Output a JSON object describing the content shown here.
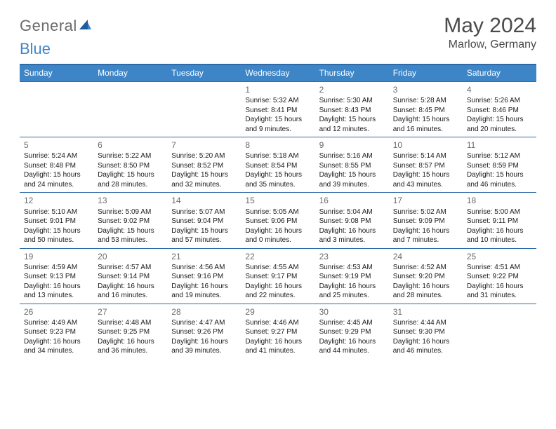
{
  "logo": {
    "word1": "General",
    "word2": "Blue"
  },
  "title": {
    "month": "May 2024",
    "location": "Marlow, Germany"
  },
  "dayHeaders": [
    "Sunday",
    "Monday",
    "Tuesday",
    "Wednesday",
    "Thursday",
    "Friday",
    "Saturday"
  ],
  "colors": {
    "headerBg": "#3d85c6",
    "ruleLine": "#2f6aa8",
    "textGray": "#6a6a6a",
    "logoGray": "#6b6b6b",
    "logoBlue": "#3d85c6"
  },
  "weeks": [
    [
      null,
      null,
      null,
      {
        "d": "1",
        "sr": "5:32 AM",
        "ss": "8:41 PM",
        "dl": "15 hours and 9 minutes."
      },
      {
        "d": "2",
        "sr": "5:30 AM",
        "ss": "8:43 PM",
        "dl": "15 hours and 12 minutes."
      },
      {
        "d": "3",
        "sr": "5:28 AM",
        "ss": "8:45 PM",
        "dl": "15 hours and 16 minutes."
      },
      {
        "d": "4",
        "sr": "5:26 AM",
        "ss": "8:46 PM",
        "dl": "15 hours and 20 minutes."
      }
    ],
    [
      {
        "d": "5",
        "sr": "5:24 AM",
        "ss": "8:48 PM",
        "dl": "15 hours and 24 minutes."
      },
      {
        "d": "6",
        "sr": "5:22 AM",
        "ss": "8:50 PM",
        "dl": "15 hours and 28 minutes."
      },
      {
        "d": "7",
        "sr": "5:20 AM",
        "ss": "8:52 PM",
        "dl": "15 hours and 32 minutes."
      },
      {
        "d": "8",
        "sr": "5:18 AM",
        "ss": "8:54 PM",
        "dl": "15 hours and 35 minutes."
      },
      {
        "d": "9",
        "sr": "5:16 AM",
        "ss": "8:55 PM",
        "dl": "15 hours and 39 minutes."
      },
      {
        "d": "10",
        "sr": "5:14 AM",
        "ss": "8:57 PM",
        "dl": "15 hours and 43 minutes."
      },
      {
        "d": "11",
        "sr": "5:12 AM",
        "ss": "8:59 PM",
        "dl": "15 hours and 46 minutes."
      }
    ],
    [
      {
        "d": "12",
        "sr": "5:10 AM",
        "ss": "9:01 PM",
        "dl": "15 hours and 50 minutes."
      },
      {
        "d": "13",
        "sr": "5:09 AM",
        "ss": "9:02 PM",
        "dl": "15 hours and 53 minutes."
      },
      {
        "d": "14",
        "sr": "5:07 AM",
        "ss": "9:04 PM",
        "dl": "15 hours and 57 minutes."
      },
      {
        "d": "15",
        "sr": "5:05 AM",
        "ss": "9:06 PM",
        "dl": "16 hours and 0 minutes."
      },
      {
        "d": "16",
        "sr": "5:04 AM",
        "ss": "9:08 PM",
        "dl": "16 hours and 3 minutes."
      },
      {
        "d": "17",
        "sr": "5:02 AM",
        "ss": "9:09 PM",
        "dl": "16 hours and 7 minutes."
      },
      {
        "d": "18",
        "sr": "5:00 AM",
        "ss": "9:11 PM",
        "dl": "16 hours and 10 minutes."
      }
    ],
    [
      {
        "d": "19",
        "sr": "4:59 AM",
        "ss": "9:13 PM",
        "dl": "16 hours and 13 minutes."
      },
      {
        "d": "20",
        "sr": "4:57 AM",
        "ss": "9:14 PM",
        "dl": "16 hours and 16 minutes."
      },
      {
        "d": "21",
        "sr": "4:56 AM",
        "ss": "9:16 PM",
        "dl": "16 hours and 19 minutes."
      },
      {
        "d": "22",
        "sr": "4:55 AM",
        "ss": "9:17 PM",
        "dl": "16 hours and 22 minutes."
      },
      {
        "d": "23",
        "sr": "4:53 AM",
        "ss": "9:19 PM",
        "dl": "16 hours and 25 minutes."
      },
      {
        "d": "24",
        "sr": "4:52 AM",
        "ss": "9:20 PM",
        "dl": "16 hours and 28 minutes."
      },
      {
        "d": "25",
        "sr": "4:51 AM",
        "ss": "9:22 PM",
        "dl": "16 hours and 31 minutes."
      }
    ],
    [
      {
        "d": "26",
        "sr": "4:49 AM",
        "ss": "9:23 PM",
        "dl": "16 hours and 34 minutes."
      },
      {
        "d": "27",
        "sr": "4:48 AM",
        "ss": "9:25 PM",
        "dl": "16 hours and 36 minutes."
      },
      {
        "d": "28",
        "sr": "4:47 AM",
        "ss": "9:26 PM",
        "dl": "16 hours and 39 minutes."
      },
      {
        "d": "29",
        "sr": "4:46 AM",
        "ss": "9:27 PM",
        "dl": "16 hours and 41 minutes."
      },
      {
        "d": "30",
        "sr": "4:45 AM",
        "ss": "9:29 PM",
        "dl": "16 hours and 44 minutes."
      },
      {
        "d": "31",
        "sr": "4:44 AM",
        "ss": "9:30 PM",
        "dl": "16 hours and 46 minutes."
      },
      null
    ]
  ],
  "labels": {
    "sunrise": "Sunrise: ",
    "sunset": "Sunset: ",
    "daylight": "Daylight: "
  }
}
